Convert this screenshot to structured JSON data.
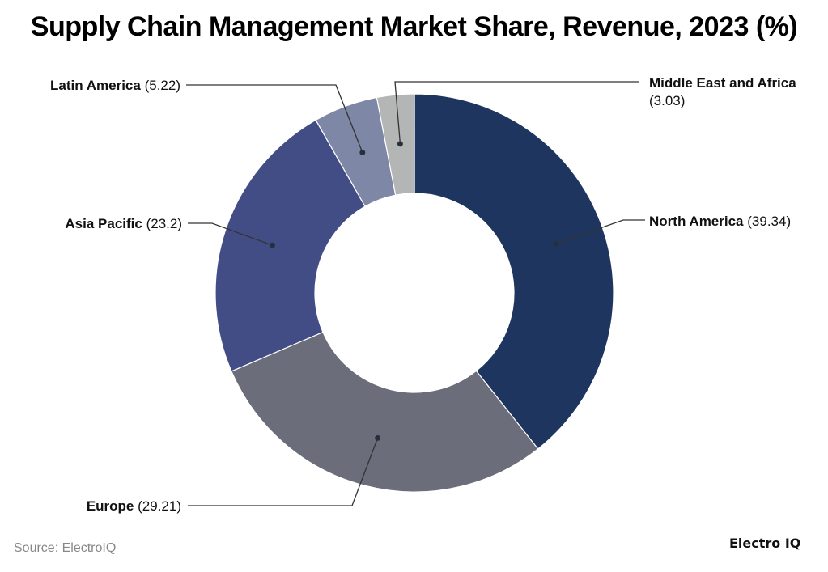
{
  "chart_data": {
    "type": "pie",
    "variant": "donut",
    "title": "Supply Chain Management Market Share, Revenue, 2023 (%)",
    "categories": [
      "North America",
      "Europe",
      "Asia Pacific",
      "Latin America",
      "Middle East and Africa"
    ],
    "values": [
      39.34,
      29.21,
      23.2,
      5.22,
      3.03
    ],
    "value_labels": [
      "(39.34)",
      "(29.21)",
      "(23.2)",
      "(5.22)",
      "(3.03)"
    ],
    "colors": [
      "#1e3560",
      "#6b6e7a",
      "#434d85",
      "#7f87a6",
      "#b4b5b5"
    ],
    "legend": "none (leader-line labels)"
  },
  "source": "Source: ElectroIQ",
  "logo": "Electro IQ"
}
